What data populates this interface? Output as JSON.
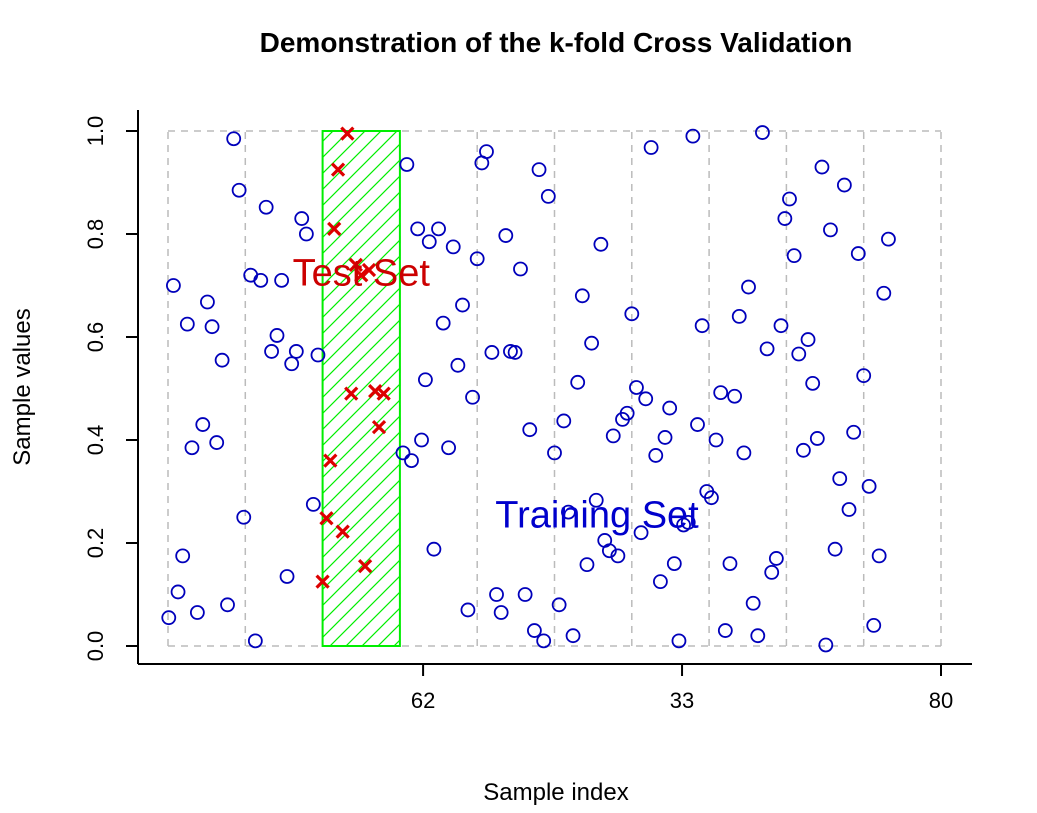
{
  "chart_data": {
    "type": "scatter",
    "title": "Demonstration of the k-fold Cross Validation",
    "xlabel": "Sample index",
    "ylabel": "Sample values",
    "xlim": [
      0,
      100
    ],
    "ylim": [
      0,
      1
    ],
    "x_ticks": [
      {
        "label": "62",
        "at": 33
      },
      {
        "label": "33",
        "at": 66.5
      },
      {
        "label": "80",
        "at": 100
      }
    ],
    "y_ticks": [
      "0.0",
      "0.2",
      "0.4",
      "0.6",
      "0.8",
      "1.0"
    ],
    "fold_boundaries": [
      0,
      10,
      20,
      30,
      40,
      50,
      60,
      70,
      80,
      90,
      100
    ],
    "test_fold": [
      20,
      30
    ],
    "annotations": [
      {
        "text": "Test Set",
        "x": 25,
        "y": 0.7,
        "color": "#cc0000"
      },
      {
        "text": "Training Set",
        "x": 55.5,
        "y": 0.23,
        "color": "#0000cc"
      }
    ],
    "colors": {
      "training": "#0000bb",
      "test": "#dd0000",
      "test_fold_fill": "#00ee00",
      "fold_lines": "#bbbbbb"
    },
    "series": [
      {
        "name": "Training Set",
        "marker": "circle",
        "points": [
          [
            0.1,
            0.055
          ],
          [
            0.7,
            0.7
          ],
          [
            1.3,
            0.105
          ],
          [
            1.9,
            0.175
          ],
          [
            2.5,
            0.625
          ],
          [
            3.1,
            0.385
          ],
          [
            3.8,
            0.065
          ],
          [
            4.5,
            0.43
          ],
          [
            5.1,
            0.668
          ],
          [
            5.7,
            0.62
          ],
          [
            6.3,
            0.395
          ],
          [
            7.0,
            0.555
          ],
          [
            7.7,
            0.08
          ],
          [
            8.5,
            0.985
          ],
          [
            9.2,
            0.885
          ],
          [
            9.8,
            0.25
          ],
          [
            10.7,
            0.72
          ],
          [
            11.3,
            0.01
          ],
          [
            12.0,
            0.71
          ],
          [
            12.7,
            0.852
          ],
          [
            13.4,
            0.572
          ],
          [
            14.1,
            0.603
          ],
          [
            14.7,
            0.71
          ],
          [
            15.4,
            0.135
          ],
          [
            16.0,
            0.548
          ],
          [
            16.6,
            0.572
          ],
          [
            17.3,
            0.83
          ],
          [
            17.9,
            0.8
          ],
          [
            18.8,
            0.275
          ],
          [
            19.4,
            0.565
          ],
          [
            30.4,
            0.375
          ],
          [
            30.9,
            0.935
          ],
          [
            31.5,
            0.36
          ],
          [
            32.3,
            0.81
          ],
          [
            32.8,
            0.4
          ],
          [
            33.3,
            0.517
          ],
          [
            33.8,
            0.785
          ],
          [
            34.4,
            0.188
          ],
          [
            35.0,
            0.81
          ],
          [
            35.6,
            0.627
          ],
          [
            36.3,
            0.385
          ],
          [
            36.9,
            0.775
          ],
          [
            37.5,
            0.545
          ],
          [
            38.1,
            0.662
          ],
          [
            38.8,
            0.07
          ],
          [
            39.4,
            0.483
          ],
          [
            40.0,
            0.752
          ],
          [
            40.6,
            0.938
          ],
          [
            41.2,
            0.96
          ],
          [
            41.9,
            0.57
          ],
          [
            42.5,
            0.1
          ],
          [
            43.1,
            0.065
          ],
          [
            43.7,
            0.797
          ],
          [
            44.3,
            0.572
          ],
          [
            44.9,
            0.57
          ],
          [
            45.6,
            0.732
          ],
          [
            46.2,
            0.1
          ],
          [
            46.8,
            0.42
          ],
          [
            47.4,
            0.03
          ],
          [
            48.0,
            0.925
          ],
          [
            48.6,
            0.01
          ],
          [
            49.2,
            0.873
          ],
          [
            50.0,
            0.375
          ],
          [
            50.6,
            0.08
          ],
          [
            51.2,
            0.437
          ],
          [
            51.8,
            0.26
          ],
          [
            52.4,
            0.02
          ],
          [
            53.0,
            0.512
          ],
          [
            53.6,
            0.68
          ],
          [
            54.2,
            0.158
          ],
          [
            54.8,
            0.588
          ],
          [
            55.4,
            0.283
          ],
          [
            56.0,
            0.78
          ],
          [
            56.5,
            0.205
          ],
          [
            57.1,
            0.185
          ],
          [
            57.6,
            0.408
          ],
          [
            58.2,
            0.175
          ],
          [
            58.8,
            0.44
          ],
          [
            59.4,
            0.452
          ],
          [
            60.0,
            0.645
          ],
          [
            60.6,
            0.502
          ],
          [
            61.2,
            0.22
          ],
          [
            61.8,
            0.48
          ],
          [
            62.5,
            0.968
          ],
          [
            63.1,
            0.37
          ],
          [
            63.7,
            0.125
          ],
          [
            64.3,
            0.405
          ],
          [
            64.9,
            0.462
          ],
          [
            65.5,
            0.16
          ],
          [
            66.1,
            0.01
          ],
          [
            66.7,
            0.235
          ],
          [
            67.3,
            0.24
          ],
          [
            67.9,
            0.99
          ],
          [
            68.5,
            0.43
          ],
          [
            69.1,
            0.622
          ],
          [
            69.7,
            0.3
          ],
          [
            70.3,
            0.288
          ],
          [
            70.9,
            0.4
          ],
          [
            71.5,
            0.492
          ],
          [
            72.1,
            0.03
          ],
          [
            72.7,
            0.16
          ],
          [
            73.3,
            0.485
          ],
          [
            73.9,
            0.64
          ],
          [
            74.5,
            0.375
          ],
          [
            75.1,
            0.697
          ],
          [
            75.7,
            0.083
          ],
          [
            76.3,
            0.02
          ],
          [
            76.9,
            0.997
          ],
          [
            77.5,
            0.577
          ],
          [
            78.1,
            0.143
          ],
          [
            78.7,
            0.17
          ],
          [
            79.3,
            0.622
          ],
          [
            79.8,
            0.83
          ],
          [
            80.4,
            0.868
          ],
          [
            81.0,
            0.758
          ],
          [
            81.6,
            0.567
          ],
          [
            82.2,
            0.38
          ],
          [
            82.8,
            0.595
          ],
          [
            83.4,
            0.51
          ],
          [
            84.0,
            0.403
          ],
          [
            84.6,
            0.93
          ],
          [
            85.1,
            0.002
          ],
          [
            85.7,
            0.808
          ],
          [
            86.3,
            0.188
          ],
          [
            86.9,
            0.325
          ],
          [
            87.5,
            0.895
          ],
          [
            88.1,
            0.265
          ],
          [
            88.7,
            0.415
          ],
          [
            89.3,
            0.762
          ],
          [
            90.0,
            0.525
          ],
          [
            90.7,
            0.31
          ],
          [
            91.3,
            0.04
          ],
          [
            92.0,
            0.175
          ],
          [
            92.6,
            0.685
          ],
          [
            93.2,
            0.79
          ]
        ]
      },
      {
        "name": "Test Set",
        "marker": "x",
        "points": [
          [
            20.0,
            0.125
          ],
          [
            20.5,
            0.248
          ],
          [
            21.0,
            0.36
          ],
          [
            21.5,
            0.81
          ],
          [
            22.0,
            0.925
          ],
          [
            22.6,
            0.222
          ],
          [
            23.2,
            0.995
          ],
          [
            23.7,
            0.49
          ],
          [
            24.3,
            0.74
          ],
          [
            25.0,
            0.72
          ],
          [
            25.5,
            0.155
          ],
          [
            26.0,
            0.73
          ],
          [
            26.8,
            0.495
          ],
          [
            27.3,
            0.425
          ],
          [
            27.9,
            0.49
          ]
        ]
      }
    ]
  }
}
